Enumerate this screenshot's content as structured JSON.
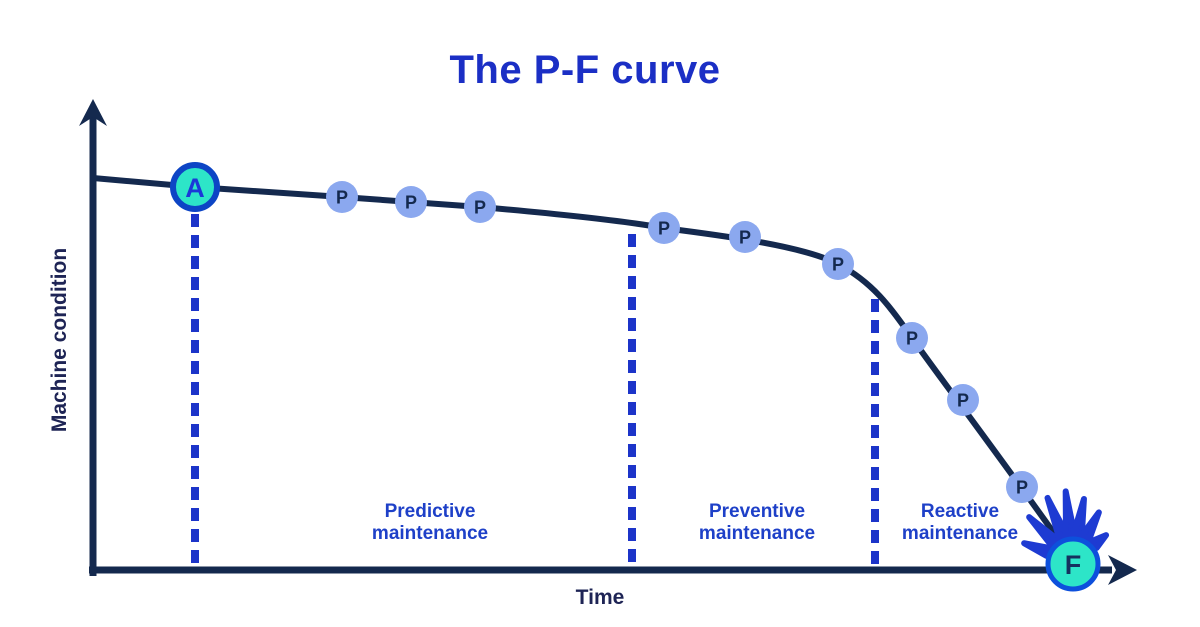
{
  "title": "The P-F curve",
  "y_axis_label": "Machine condition",
  "x_axis_label": "Time",
  "zones": {
    "predictive": "Predictive\nmaintenance",
    "preventive": "Preventive\nmaintenance",
    "reactive": "Reactive\nmaintenance"
  },
  "points": {
    "a_label": "A",
    "f_label": "F",
    "p_label": "P",
    "p_markers": [
      [
        342,
        197
      ],
      [
        411,
        202
      ],
      [
        480,
        207
      ],
      [
        664,
        228
      ],
      [
        745,
        237
      ],
      [
        838,
        264
      ],
      [
        912,
        338
      ],
      [
        963,
        400
      ],
      [
        1022,
        487
      ]
    ]
  },
  "colors": {
    "title_blue": "#1b2fc5",
    "zone_blue": "#1e40c8",
    "dashed_blue": "#1c34c9",
    "navy": "#14294e",
    "navy_text": "#1e2455",
    "p_fill": "#8ba8ef",
    "teal": "#2de5c8",
    "a_ring": "#0d45c5",
    "f_ring": "#0d50dc",
    "a_letter": "#1b38d8",
    "f_letter": "#16305e",
    "burst_blue": "#1e3bd2"
  },
  "chart_data": {
    "type": "line",
    "title": "The P-F curve",
    "xlabel": "Time",
    "ylabel": "Machine condition",
    "zones": [
      "Predictive maintenance",
      "Preventive maintenance",
      "Reactive maintenance"
    ],
    "markers": [
      "A",
      "P",
      "P",
      "P",
      "P",
      "P",
      "P",
      "P",
      "P",
      "P",
      "F"
    ]
  }
}
